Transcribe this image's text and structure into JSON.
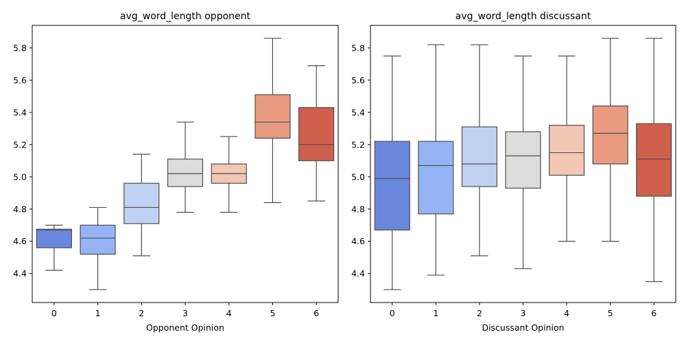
{
  "chart_data": [
    {
      "type": "box",
      "title": "avg_word_length opponent",
      "xlabel": "Opponent Opinion",
      "ylabel": "",
      "categories": [
        "0",
        "1",
        "2",
        "3",
        "4",
        "5",
        "6"
      ],
      "ylim": [
        4.22,
        5.94
      ],
      "yticks": [
        4.4,
        4.6,
        4.8,
        5.0,
        5.2,
        5.4,
        5.6,
        5.8
      ],
      "ytick_labels": [
        "4.4",
        "4.6",
        "4.8",
        "5.0",
        "5.2",
        "5.4",
        "5.6",
        "5.8"
      ],
      "grid": false,
      "boxes": [
        {
          "category": "0",
          "whisker_low": 4.42,
          "q1": 4.56,
          "median": 4.67,
          "q3": 4.675,
          "whisker_high": 4.7,
          "color": "#6b87dd"
        },
        {
          "category": "1",
          "whisker_low": 4.3,
          "q1": 4.52,
          "median": 4.62,
          "q3": 4.7,
          "whisker_high": 4.81,
          "color": "#94b4f5"
        },
        {
          "category": "2",
          "whisker_low": 4.51,
          "q1": 4.71,
          "median": 4.81,
          "q3": 4.96,
          "whisker_high": 5.14,
          "color": "#c0d2f4"
        },
        {
          "category": "3",
          "whisker_low": 4.78,
          "q1": 4.94,
          "median": 5.02,
          "q3": 5.11,
          "whisker_high": 5.34,
          "color": "#dcdcdc"
        },
        {
          "category": "4",
          "whisker_low": 4.78,
          "q1": 4.96,
          "median": 5.02,
          "q3": 5.08,
          "whisker_high": 5.25,
          "color": "#f2c7b3"
        },
        {
          "category": "5",
          "whisker_low": 4.84,
          "q1": 5.24,
          "median": 5.34,
          "q3": 5.51,
          "whisker_high": 5.86,
          "color": "#e89b80"
        },
        {
          "category": "6",
          "whisker_low": 4.85,
          "q1": 5.1,
          "median": 5.2,
          "q3": 5.43,
          "whisker_high": 5.69,
          "color": "#d0604e"
        }
      ]
    },
    {
      "type": "box",
      "title": "avg_word_length discussant",
      "xlabel": "Discussant Opinion",
      "ylabel": "",
      "categories": [
        "0",
        "1",
        "2",
        "3",
        "4",
        "5",
        "6"
      ],
      "ylim": [
        4.22,
        5.94
      ],
      "yticks": [
        4.4,
        4.6,
        4.8,
        5.0,
        5.2,
        5.4,
        5.6,
        5.8
      ],
      "ytick_labels": [
        "4.4",
        "4.6",
        "4.8",
        "5.0",
        "5.2",
        "5.4",
        "5.6",
        "5.8"
      ],
      "grid": false,
      "boxes": [
        {
          "category": "0",
          "whisker_low": 4.3,
          "q1": 4.67,
          "median": 4.99,
          "q3": 5.22,
          "whisker_high": 5.75,
          "color": "#6b87dd"
        },
        {
          "category": "1",
          "whisker_low": 4.39,
          "q1": 4.77,
          "median": 5.07,
          "q3": 5.22,
          "whisker_high": 5.82,
          "color": "#94b4f5"
        },
        {
          "category": "2",
          "whisker_low": 4.51,
          "q1": 4.94,
          "median": 5.08,
          "q3": 5.31,
          "whisker_high": 5.82,
          "color": "#c0d2f4"
        },
        {
          "category": "3",
          "whisker_low": 4.43,
          "q1": 4.93,
          "median": 5.13,
          "q3": 5.28,
          "whisker_high": 5.75,
          "color": "#dcdcdc"
        },
        {
          "category": "4",
          "whisker_low": 4.6,
          "q1": 5.01,
          "median": 5.15,
          "q3": 5.32,
          "whisker_high": 5.75,
          "color": "#f2c7b3"
        },
        {
          "category": "5",
          "whisker_low": 4.6,
          "q1": 5.08,
          "median": 5.27,
          "q3": 5.44,
          "whisker_high": 5.86,
          "color": "#e89b80"
        },
        {
          "category": "6",
          "whisker_low": 4.35,
          "q1": 4.88,
          "median": 5.11,
          "q3": 5.33,
          "whisker_high": 5.86,
          "color": "#d0604e"
        }
      ]
    }
  ],
  "style": {
    "line_color": "#4d4d4d",
    "axis_color": "#000000"
  }
}
